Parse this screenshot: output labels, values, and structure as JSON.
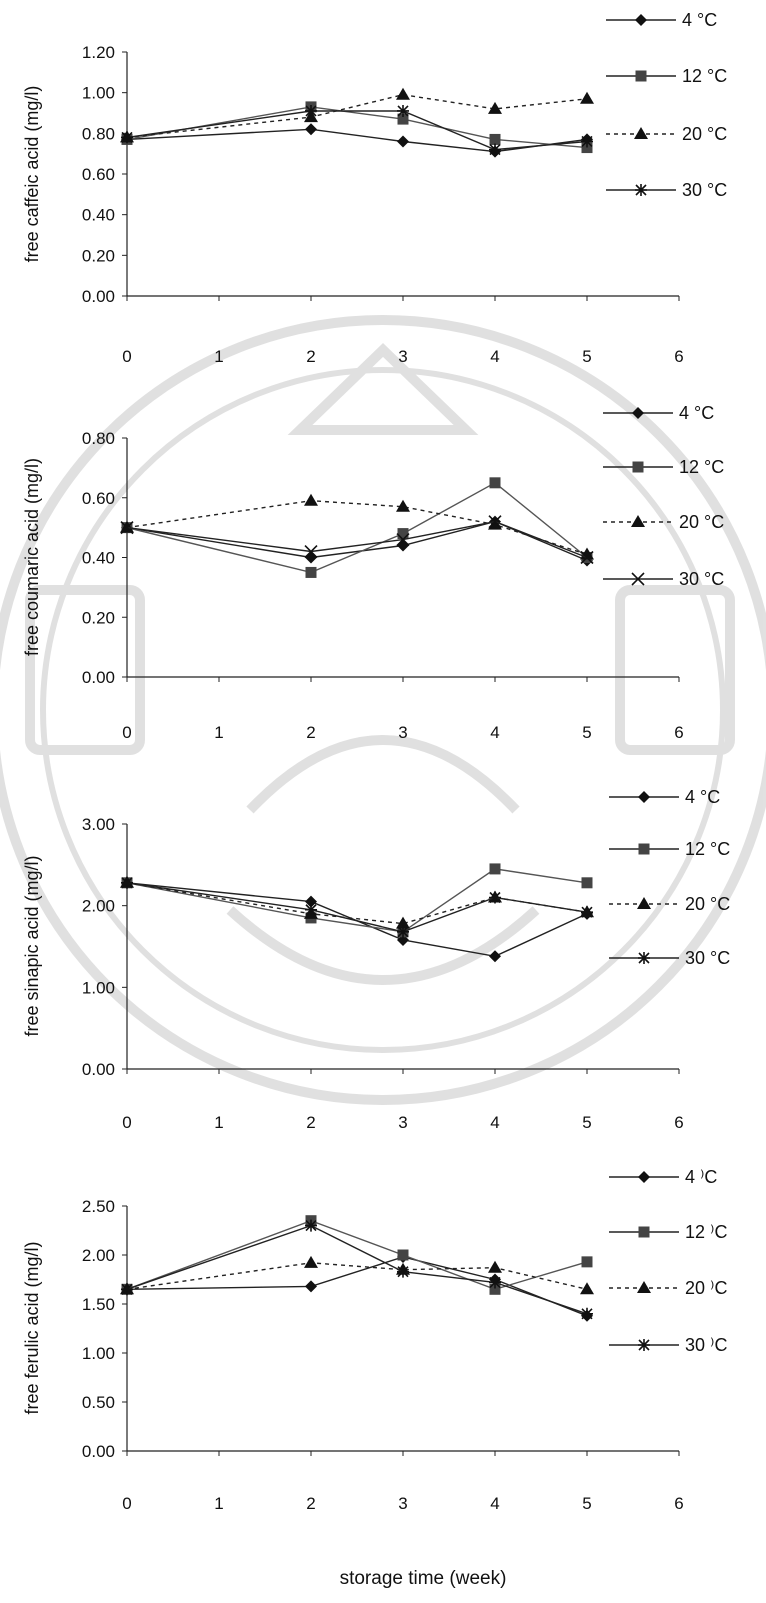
{
  "chart_data": [
    {
      "type": "line",
      "ylabel": "free caffeic acid (mg/l)",
      "xlabel": "",
      "x_ticks": [
        "0",
        "1",
        "2",
        "3",
        "4",
        "5",
        "6"
      ],
      "y_ticks": [
        "0.00",
        "0.20",
        "0.40",
        "0.60",
        "0.80",
        "1.00",
        "1.20"
      ],
      "xlim": [
        0,
        6
      ],
      "ylim": [
        0,
        1.2
      ],
      "legend_position": "right",
      "series": [
        {
          "name": "4 °C",
          "marker": "diamond",
          "line": "solid",
          "x": [
            0,
            2,
            3,
            4,
            5
          ],
          "y": [
            0.77,
            0.82,
            0.76,
            0.71,
            0.77
          ]
        },
        {
          "name": "12 °C",
          "marker": "square",
          "line": "solid",
          "x": [
            0,
            2,
            3,
            4,
            5
          ],
          "y": [
            0.77,
            0.93,
            0.87,
            0.77,
            0.73
          ]
        },
        {
          "name": "20 °C",
          "marker": "triangle",
          "line": "dashed",
          "x": [
            0,
            2,
            3,
            4,
            5
          ],
          "y": [
            0.78,
            0.88,
            0.99,
            0.92,
            0.97
          ]
        },
        {
          "name": "30 °C",
          "marker": "star",
          "line": "solid",
          "x": [
            0,
            2,
            3,
            4,
            5
          ],
          "y": [
            0.78,
            0.91,
            0.91,
            0.72,
            0.76
          ]
        }
      ]
    },
    {
      "type": "line",
      "ylabel": "free coumaric acid (mg/l)",
      "xlabel": "",
      "x_ticks": [
        "0",
        "1",
        "2",
        "3",
        "4",
        "5",
        "6"
      ],
      "y_ticks": [
        "0.00",
        "0.20",
        "0.40",
        "0.60",
        "0.80"
      ],
      "xlim": [
        0,
        6
      ],
      "ylim": [
        0,
        0.8
      ],
      "legend_position": "right",
      "series": [
        {
          "name": "4 °C",
          "marker": "diamond",
          "line": "solid",
          "x": [
            0,
            2,
            3,
            4,
            5
          ],
          "y": [
            0.5,
            0.4,
            0.44,
            0.52,
            0.39
          ]
        },
        {
          "name": "12 °C",
          "marker": "square",
          "line": "solid",
          "x": [
            0,
            2,
            3,
            4,
            5
          ],
          "y": [
            0.5,
            0.35,
            0.48,
            0.65,
            0.4
          ]
        },
        {
          "name": "20 °C",
          "marker": "triangle",
          "line": "dashed",
          "x": [
            0,
            2,
            3,
            4,
            5
          ],
          "y": [
            0.5,
            0.59,
            0.57,
            0.51,
            0.41
          ]
        },
        {
          "name": "30 °C",
          "marker": "x",
          "line": "solid",
          "x": [
            0,
            2,
            3,
            4,
            5
          ],
          "y": [
            0.5,
            0.42,
            0.46,
            0.52,
            0.4
          ]
        }
      ]
    },
    {
      "type": "line",
      "ylabel": "free sinapic acid (mg/l)",
      "xlabel": "",
      "x_ticks": [
        "0",
        "1",
        "2",
        "3",
        "4",
        "5",
        "6"
      ],
      "y_ticks": [
        "0.00",
        "1.00",
        "2.00",
        "3.00"
      ],
      "xlim": [
        0,
        6
      ],
      "ylim": [
        0,
        3
      ],
      "legend_position": "right",
      "series": [
        {
          "name": "4 °C",
          "marker": "diamond",
          "line": "solid",
          "x": [
            0,
            2,
            3,
            4,
            5
          ],
          "y": [
            2.28,
            2.05,
            1.58,
            1.38,
            1.9
          ]
        },
        {
          "name": "12 °C",
          "marker": "square",
          "line": "solid",
          "x": [
            0,
            2,
            3,
            4,
            5
          ],
          "y": [
            2.28,
            1.85,
            1.68,
            2.45,
            2.28
          ]
        },
        {
          "name": "20 °C",
          "marker": "triangle",
          "line": "dashed",
          "x": [
            0,
            2,
            3,
            4,
            5
          ],
          "y": [
            2.28,
            1.9,
            1.78,
            2.1,
            1.92
          ]
        },
        {
          "name": "30 °C",
          "marker": "star",
          "line": "solid",
          "x": [
            0,
            2,
            3,
            4,
            5
          ],
          "y": [
            2.28,
            1.95,
            1.68,
            2.1,
            1.92
          ]
        }
      ]
    },
    {
      "type": "line",
      "ylabel": "free ferulic acid (mg/l)",
      "xlabel": "storage time (week)",
      "x_ticks": [
        "0",
        "1",
        "2",
        "3",
        "4",
        "5",
        "6"
      ],
      "y_ticks": [
        "0.00",
        "0.50",
        "1.00",
        "1.50",
        "2.00",
        "2.50"
      ],
      "xlim": [
        0,
        6
      ],
      "ylim": [
        0,
        2.5
      ],
      "legend_position": "right",
      "series": [
        {
          "name": "4 ⁾C",
          "marker": "diamond",
          "line": "solid",
          "x": [
            0,
            2,
            3,
            4,
            5
          ],
          "y": [
            1.65,
            1.68,
            1.98,
            1.75,
            1.38
          ]
        },
        {
          "name": "12 ⁾C",
          "marker": "square",
          "line": "solid",
          "x": [
            0,
            2,
            3,
            4,
            5
          ],
          "y": [
            1.65,
            2.35,
            2.0,
            1.65,
            1.93
          ]
        },
        {
          "name": "20 ⁾C",
          "marker": "triangle",
          "line": "dashed",
          "x": [
            0,
            2,
            3,
            4,
            5
          ],
          "y": [
            1.65,
            1.92,
            1.85,
            1.87,
            1.65
          ]
        },
        {
          "name": "30 ⁾C",
          "marker": "star",
          "line": "solid",
          "x": [
            0,
            2,
            3,
            4,
            5
          ],
          "y": [
            1.65,
            2.3,
            1.83,
            1.72,
            1.4
          ]
        }
      ]
    }
  ]
}
